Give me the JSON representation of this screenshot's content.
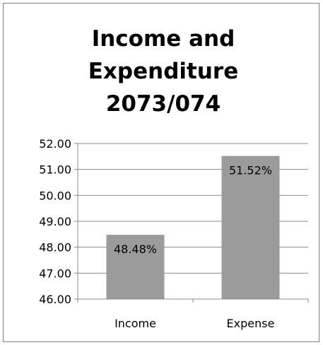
{
  "chart_data": {
    "type": "bar",
    "title_lines": [
      "Income and",
      "Expenditure",
      "2073/074"
    ],
    "categories": [
      "Income",
      "Expense"
    ],
    "values": [
      48.48,
      51.52
    ],
    "data_labels": [
      "48.48%",
      "51.52%"
    ],
    "y_ticks": [
      "52.00",
      "51.00",
      "50.00",
      "49.00",
      "48.00",
      "47.00",
      "46.00"
    ],
    "ylim": [
      46,
      52
    ],
    "grid": true,
    "legend": "none",
    "bar_color": "#9b9b9b",
    "gridline_color": "#8c8c8c"
  }
}
